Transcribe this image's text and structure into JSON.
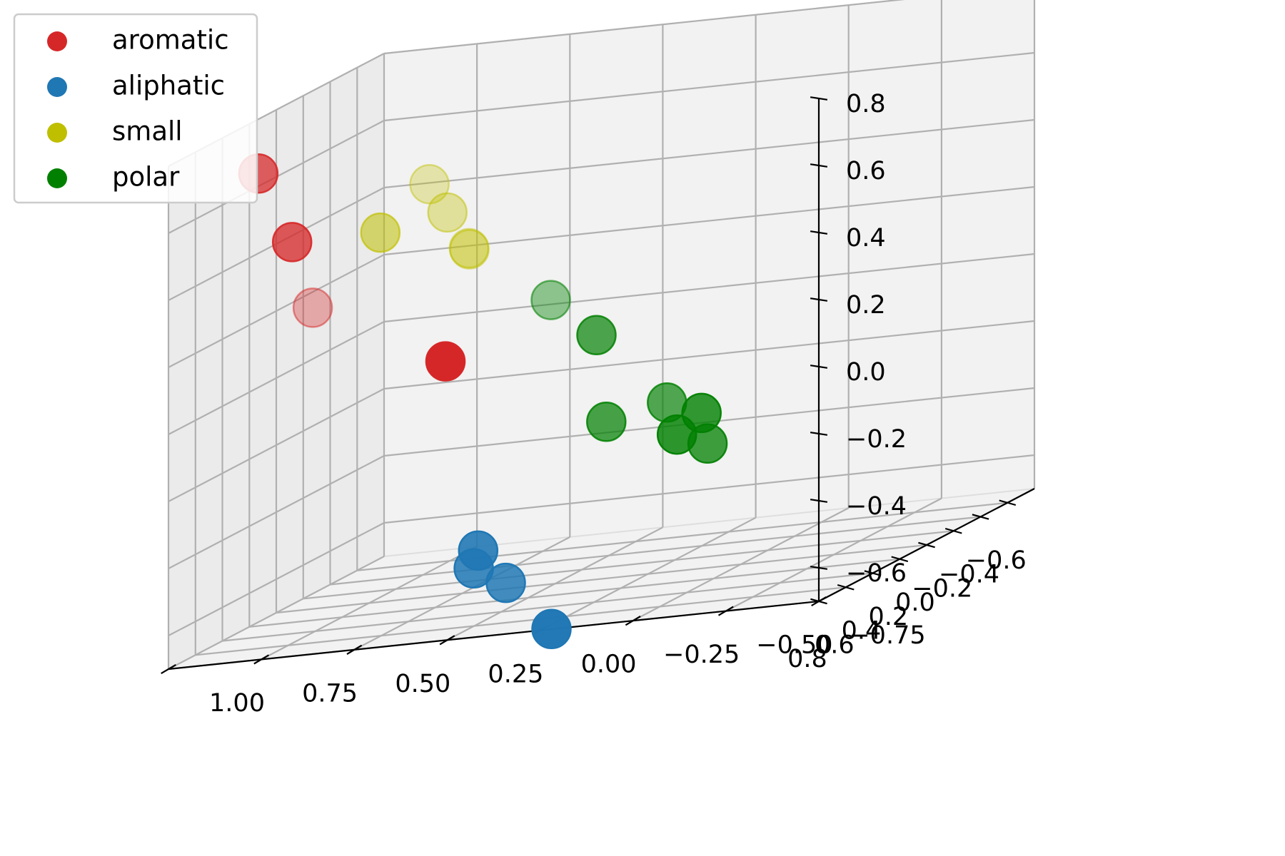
{
  "chart_data": {
    "type": "scatter",
    "projection": "3d",
    "grid": true,
    "legend_position": "top-left",
    "xlim": [
      -0.8,
      0.8
    ],
    "ylim": [
      -0.75,
      1.0
    ],
    "zlim": [
      -0.7,
      0.8
    ],
    "x_ticks": [
      -0.6,
      -0.4,
      -0.2,
      0.0,
      0.2,
      0.4,
      0.6,
      0.8
    ],
    "y_ticks": [
      -0.75,
      -0.5,
      -0.25,
      0.0,
      0.25,
      0.5,
      0.75,
      1.0
    ],
    "z_ticks": [
      -0.6,
      -0.4,
      -0.2,
      0.0,
      0.2,
      0.4,
      0.6,
      0.8
    ],
    "x_tick_labels": [
      "−0.6",
      "−0.4",
      "−0.2",
      "0.0",
      "0.2",
      "0.4",
      "0.6",
      "0.8"
    ],
    "y_tick_labels": [
      "−0.75",
      "−0.50",
      "−0.25",
      "0.00",
      "0.25",
      "0.50",
      "0.75",
      "1.00"
    ],
    "z_tick_labels": [
      "−0.6",
      "−0.4",
      "−0.2",
      "0.0",
      "0.2",
      "0.4",
      "0.6",
      "0.8"
    ],
    "series": [
      {
        "name": "aromatic",
        "color": "#d62728",
        "points": [
          {
            "x": 0.74,
            "y": 0.78,
            "z": 0.74
          },
          {
            "x": 0.71,
            "y": 0.7,
            "z": 0.52
          },
          {
            "x": 0.73,
            "y": 0.28,
            "z": 0.12
          },
          {
            "x": -0.05,
            "y": 0.92,
            "z": 0.19
          }
        ]
      },
      {
        "name": "aliphatic",
        "color": "#1f77b4",
        "points": [
          {
            "x": 0.46,
            "y": 0.29,
            "z": -0.5
          },
          {
            "x": 0.41,
            "y": 0.32,
            "z": -0.56
          },
          {
            "x": 0.31,
            "y": 0.27,
            "z": -0.63
          },
          {
            "x": 0.44,
            "y": 0.1,
            "z": -0.76
          }
        ]
      },
      {
        "name": "small",
        "color": "#bfbf00",
        "points": [
          {
            "x": -0.36,
            "y": 0.67,
            "z": 0.38
          },
          {
            "x": -0.42,
            "y": 0.74,
            "z": 0.46
          },
          {
            "x": -0.44,
            "y": 0.64,
            "z": 0.25
          },
          {
            "x": -0.52,
            "y": 0.67,
            "z": 0.24
          },
          {
            "x": 0.11,
            "y": 0.68,
            "z": 0.42
          }
        ]
      },
      {
        "name": "polar",
        "color": "#008000",
        "points": [
          {
            "x": -0.52,
            "y": 0.45,
            "z": 0.06
          },
          {
            "x": -0.17,
            "y": 0.2,
            "z": 0.0
          },
          {
            "x": -0.26,
            "y": -0.05,
            "z": -0.28
          },
          {
            "x": -0.39,
            "y": 0.09,
            "z": -0.26
          },
          {
            "x": -0.36,
            "y": -0.03,
            "z": -0.39
          },
          {
            "x": -0.16,
            "y": -0.02,
            "z": -0.32
          },
          {
            "x": -0.16,
            "y": 0.17,
            "z": -0.26
          }
        ]
      }
    ]
  }
}
